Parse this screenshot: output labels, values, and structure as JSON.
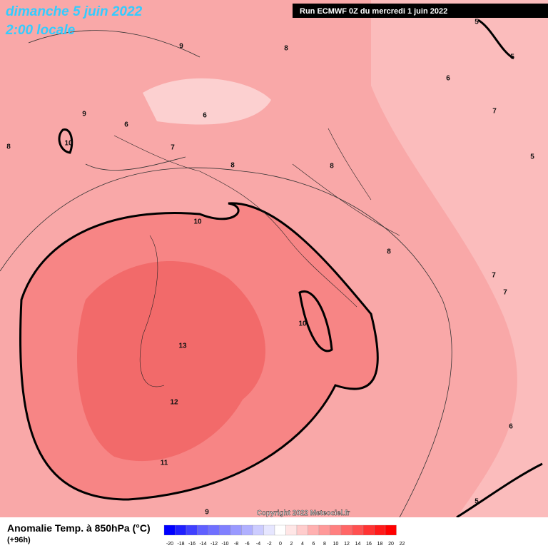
{
  "header": {
    "date": "dimanche 5 juin 2022",
    "time": "2:00 locale",
    "run": "Run ECMWF 0Z du mercredi 1 juin 2022"
  },
  "contour_labels": [
    5,
    5,
    6,
    7,
    5,
    9,
    8,
    9,
    6,
    6,
    10,
    8,
    7,
    8,
    8,
    10,
    8,
    7,
    7,
    10,
    13,
    12,
    6,
    11,
    9,
    5
  ],
  "copyright": "Copyright 2022 Meteociel.fr",
  "legend": {
    "title": "Anomalie Temp. à 850hPa (°C)",
    "lead": "(+96h)",
    "ticks": [
      -20,
      -18,
      -16,
      -14,
      -12,
      -10,
      -8,
      -6,
      -4,
      -2,
      0,
      2,
      4,
      6,
      8,
      10,
      12,
      14,
      16,
      18,
      20,
      22
    ],
    "colors": [
      "#0000ff",
      "#2020ff",
      "#4040ff",
      "#6060ff",
      "#7070ff",
      "#8080ff",
      "#9999ff",
      "#b0b0ff",
      "#ccccff",
      "#e6e6ff",
      "#ffffff",
      "#ffe6e6",
      "#ffcccc",
      "#ffb0b0",
      "#ff9999",
      "#ff8080",
      "#ff6666",
      "#ff5050",
      "#ff3333",
      "#ff1a1a",
      "#ff0000"
    ]
  }
}
